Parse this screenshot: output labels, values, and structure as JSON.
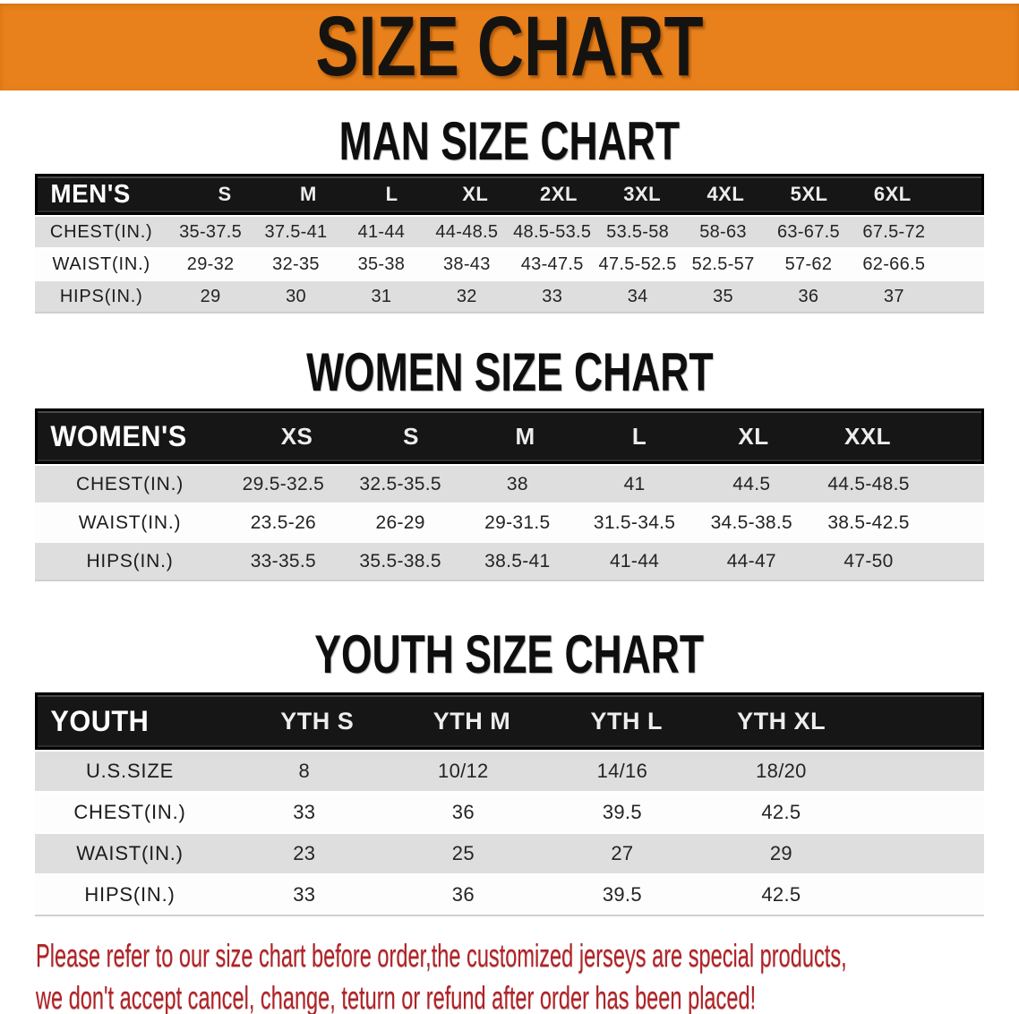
{
  "banner": {
    "title": "SIZE CHART"
  },
  "colors": {
    "banner_orange": "#e8811b",
    "header_bar_black": "#161616",
    "row_gray": "#dedede",
    "note_red": "#b02226"
  },
  "sections": [
    {
      "id": "men",
      "heading": "MAN SIZE CHART",
      "table": {
        "label": "MEN'S",
        "sizes": [
          "S",
          "M",
          "L",
          "XL",
          "2XL",
          "3XL",
          "4XL",
          "5XL",
          "6XL"
        ],
        "rows": [
          {
            "label": "CHEST(IN.)",
            "values": [
              "35-37.5",
              "37.5-41",
              "41-44",
              "44-48.5",
              "48.5-53.5",
              "53.5-58",
              "58-63",
              "63-67.5",
              "67.5-72"
            ]
          },
          {
            "label": "WAIST(IN.)",
            "values": [
              "29-32",
              "32-35",
              "35-38",
              "38-43",
              "43-47.5",
              "47.5-52.5",
              "52.5-57",
              "57-62",
              "62-66.5"
            ]
          },
          {
            "label": "HIPS(IN.)",
            "values": [
              "29",
              "30",
              "31",
              "32",
              "33",
              "34",
              "35",
              "36",
              "37"
            ]
          }
        ]
      }
    },
    {
      "id": "women",
      "heading": "WOMEN SIZE CHART",
      "table": {
        "label": "WOMEN'S",
        "sizes": [
          "XS",
          "S",
          "M",
          "L",
          "XL",
          "XXL"
        ],
        "rows": [
          {
            "label": "CHEST(IN.)",
            "values": [
              "29.5-32.5",
              "32.5-35.5",
              "38",
              "41",
              "44.5",
              "44.5-48.5"
            ]
          },
          {
            "label": "WAIST(IN.)",
            "values": [
              "23.5-26",
              "26-29",
              "29-31.5",
              "31.5-34.5",
              "34.5-38.5",
              "38.5-42.5"
            ]
          },
          {
            "label": "HIPS(IN.)",
            "values": [
              "33-35.5",
              "35.5-38.5",
              "38.5-41",
              "41-44",
              "44-47",
              "47-50"
            ]
          }
        ]
      }
    },
    {
      "id": "youth",
      "heading": "YOUTH SIZE CHART",
      "table": {
        "label": "YOUTH",
        "sizes": [
          "YTH S",
          "YTH M",
          "YTH L",
          "YTH XL"
        ],
        "rows": [
          {
            "label": "U.S.SIZE",
            "values": [
              "8",
              "10/12",
              "14/16",
              "18/20"
            ]
          },
          {
            "label": "CHEST(IN.)",
            "values": [
              "33",
              "36",
              "39.5",
              "42.5"
            ]
          },
          {
            "label": "WAIST(IN.)",
            "values": [
              "23",
              "25",
              "27",
              "29"
            ]
          },
          {
            "label": "HIPS(IN.)",
            "values": [
              "33",
              "36",
              "39.5",
              "42.5"
            ]
          }
        ]
      }
    }
  ],
  "footer": {
    "line1": "Please refer to our size chart before order,the customized jerseys are special products,",
    "line2": "we don't accept cancel, change, teturn or refund after order has been placed!"
  }
}
